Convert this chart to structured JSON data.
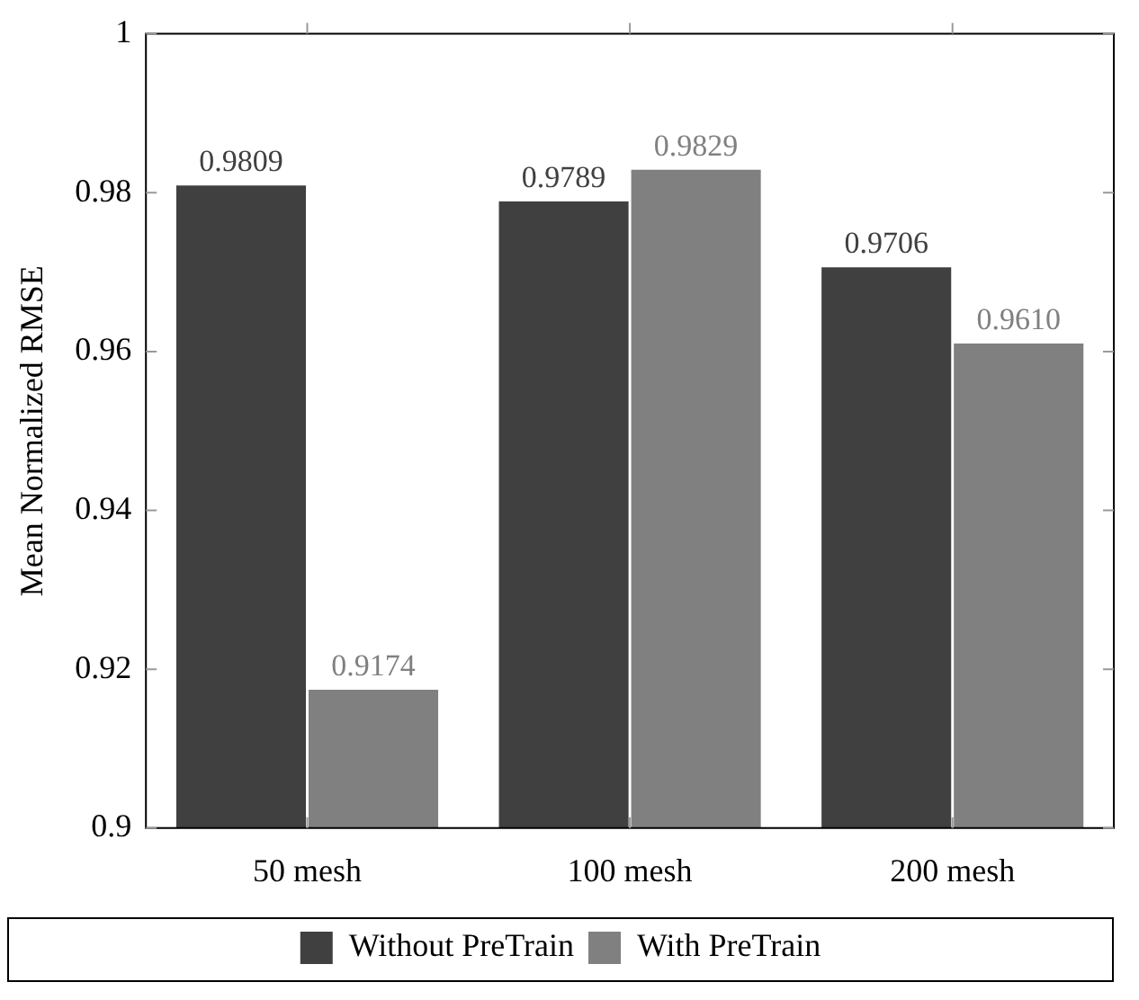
{
  "chart_data": {
    "type": "bar",
    "ylabel": "Mean Normalized RMSE",
    "categories": [
      "50 mesh",
      "100 mesh",
      "200 mesh"
    ],
    "series": [
      {
        "name": "Without PreTrain",
        "color": "#404040",
        "values": [
          0.9809,
          0.9789,
          0.9706
        ],
        "value_labels": [
          "0.9809",
          "0.9789",
          "0.9706"
        ]
      },
      {
        "name": "With PreTrain",
        "color": "#808080",
        "values": [
          0.9174,
          0.9829,
          0.961
        ],
        "value_labels": [
          "0.9174",
          "0.9829",
          "0.9610"
        ]
      }
    ],
    "ylim": [
      0.9,
      1
    ],
    "yticks": [
      0.9,
      0.92,
      0.94,
      0.96,
      0.98,
      1
    ],
    "grid": false,
    "legend": "bottom"
  }
}
